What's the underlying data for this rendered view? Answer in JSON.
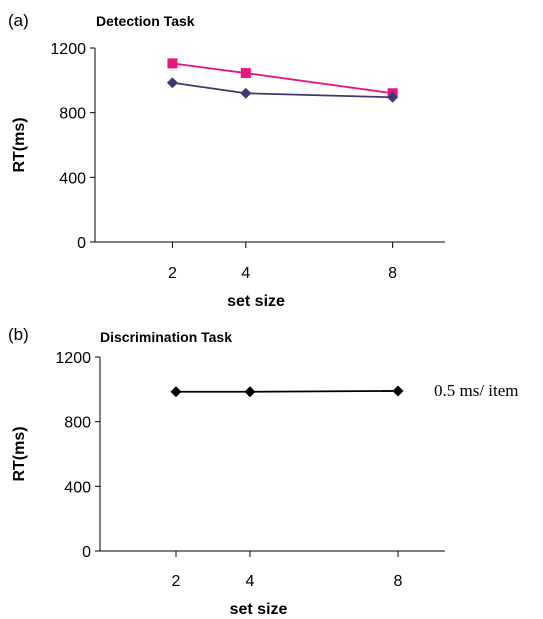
{
  "chart_data": [
    {
      "type": "line",
      "panel_label": "(a)",
      "title": "Detection Task",
      "xlabel": "set size",
      "ylabel": "RT(ms)",
      "x_ticks": [
        "2",
        "4",
        "8"
      ],
      "y_ticks": [
        "0",
        "400",
        "800",
        "1200"
      ],
      "ylim": [
        0,
        1200
      ],
      "xlim": [
        0,
        10
      ],
      "x": [
        2,
        4,
        8
      ],
      "series": [
        {
          "color": "#e8157f",
          "marker": "square",
          "values": [
            1105,
            1045,
            920
          ]
        },
        {
          "color": "#3b3b6e",
          "marker": "diamond",
          "values": [
            985,
            920,
            895
          ]
        }
      ],
      "grid": false
    },
    {
      "type": "line",
      "panel_label": "(b)",
      "title": "Discrimination Task",
      "xlabel": "set size",
      "ylabel": "RT(ms)",
      "x_ticks": [
        "2",
        "4",
        "8"
      ],
      "y_ticks": [
        "0",
        "400",
        "800",
        "1200"
      ],
      "ylim": [
        0,
        1200
      ],
      "xlim": [
        0,
        10
      ],
      "x": [
        2,
        4,
        8
      ],
      "series": [
        {
          "color": "#000000",
          "marker": "diamond",
          "values": [
            985,
            985,
            990
          ]
        }
      ],
      "annotation": "0.5 ms/ item",
      "grid": false
    }
  ]
}
